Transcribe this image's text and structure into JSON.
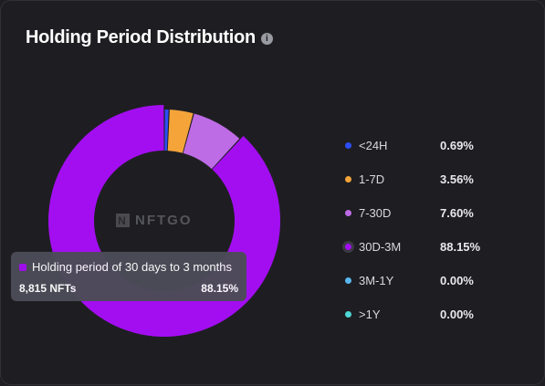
{
  "header": {
    "title": "Holding Period Distribution",
    "info_icon": "info-icon"
  },
  "watermark": {
    "text": "NFTGO"
  },
  "tooltip": {
    "description": "Holding period of 30 days to 3 months",
    "count": "8,815 NFTs",
    "percent": "88.15%",
    "color": "#a30ef1"
  },
  "legend": [
    {
      "label": "<24H",
      "value": "0.69%",
      "color": "#2d4ef5"
    },
    {
      "label": "1-7D",
      "value": "3.56%",
      "color": "#f5a43a"
    },
    {
      "label": "7-30D",
      "value": "7.60%",
      "color": "#be6be6"
    },
    {
      "label": "30D-3M",
      "value": "88.15%",
      "color": "#a30ef1"
    },
    {
      "label": "3M-1Y",
      "value": "0.00%",
      "color": "#5bb6ee"
    },
    {
      "label": ">1Y",
      "value": "0.00%",
      "color": "#4fd6d6"
    }
  ],
  "chart_data": {
    "type": "pie",
    "title": "Holding Period Distribution",
    "categories": [
      "<24H",
      "1-7D",
      "7-30D",
      "30D-3M",
      "3M-1Y",
      ">1Y"
    ],
    "values": [
      0.69,
      3.56,
      7.6,
      88.15,
      0.0,
      0.0
    ],
    "unit": "%",
    "colors": [
      "#2d4ef5",
      "#f5a43a",
      "#be6be6",
      "#a30ef1",
      "#5bb6ee",
      "#4fd6d6"
    ],
    "donut": true,
    "highlighted": "30D-3M",
    "legend_position": "right"
  }
}
